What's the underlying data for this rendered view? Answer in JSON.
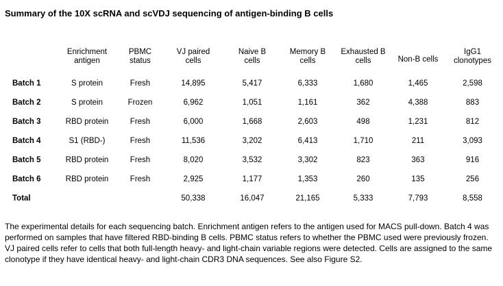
{
  "title": "Summary of the 10X scRNA and scVDJ sequencing of antigen-binding B cells",
  "table": {
    "headers": [
      {
        "line1": "",
        "line2": ""
      },
      {
        "line1": "Enrichment",
        "line2": "antigen"
      },
      {
        "line1": "PBMC",
        "line2": "status"
      },
      {
        "line1": "VJ paired",
        "line2": "cells"
      },
      {
        "line1": "Naive B",
        "line2": "cells"
      },
      {
        "line1": "Memory B",
        "line2": "cells"
      },
      {
        "line1": "Exhausted B",
        "line2": "cells"
      },
      {
        "line1": "Non-B cells",
        "line2": ""
      },
      {
        "line1": "IgG1",
        "line2": "clonotypes"
      }
    ],
    "rows": [
      {
        "batch": "Batch 1",
        "antigen": "S protein",
        "status": "Fresh",
        "vj": "14,895",
        "naive": "5,417",
        "memory": "6,333",
        "exhausted": "1,680",
        "nonb": "1,465",
        "igg1": "2,598"
      },
      {
        "batch": "Batch 2",
        "antigen": "S protein",
        "status": "Frozen",
        "vj": "6,962",
        "naive": "1,051",
        "memory": "1,161",
        "exhausted": "362",
        "nonb": "4,388",
        "igg1": "883"
      },
      {
        "batch": "Batch 3",
        "antigen": "RBD protein",
        "status": "Fresh",
        "vj": "6,000",
        "naive": "1,668",
        "memory": "2,603",
        "exhausted": "498",
        "nonb": "1,231",
        "igg1": "812"
      },
      {
        "batch": "Batch 4",
        "antigen": "S1 (RBD-)",
        "status": "Fresh",
        "vj": "11,536",
        "naive": "3,202",
        "memory": "6,413",
        "exhausted": "1,710",
        "nonb": "211",
        "igg1": "3,093"
      },
      {
        "batch": "Batch 5",
        "antigen": "RBD protein",
        "status": "Fresh",
        "vj": "8,020",
        "naive": "3,532",
        "memory": "3,302",
        "exhausted": "823",
        "nonb": "363",
        "igg1": "916"
      },
      {
        "batch": "Batch 6",
        "antigen": "RBD protein",
        "status": "Fresh",
        "vj": "2,925",
        "naive": "1,177",
        "memory": "1,353",
        "exhausted": "260",
        "nonb": "135",
        "igg1": "256"
      }
    ],
    "total": {
      "label": "Total",
      "antigen": "",
      "status": "",
      "vj": "50,338",
      "naive": "16,047",
      "memory": "21,165",
      "exhausted": "5,333",
      "nonb": "7,793",
      "igg1": "8,558"
    }
  },
  "caption": "The experimental details for each sequencing batch. Enrichment antigen refers to the antigen used for MACS pull-down. Batch 4 was performed on samples that have filtered RBD-binding B cells. PBMC status refers to whether the PBMC used were previously frozen. VJ paired cells refer to cells that both full-length heavy- and light-chain variable regions were detected. Cells are assigned to the same clonotype if they have identical heavy- and light-chain CDR3 DNA sequences. See also Figure S2."
}
